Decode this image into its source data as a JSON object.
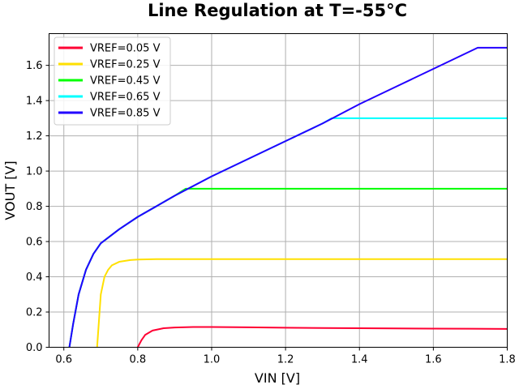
{
  "chart_data": {
    "type": "line",
    "title": "Line Regulation at T=-55°C",
    "xlabel": "VIN [V]",
    "ylabel": "VOUT [V]",
    "xlim": [
      0.56,
      1.8
    ],
    "ylim": [
      0.0,
      1.78
    ],
    "xticks": [
      "0.6",
      "0.8",
      "1.0",
      "1.2",
      "1.4",
      "1.6",
      "1.8"
    ],
    "yticks": [
      "0.0",
      "0.2",
      "0.4",
      "0.6",
      "0.8",
      "1.0",
      "1.2",
      "1.4",
      "1.6"
    ],
    "grid": true,
    "legend_position": "top-left",
    "series": [
      {
        "name": "VREF=0.05 V",
        "color": "#ff0033",
        "x": [
          0.8,
          0.81,
          0.82,
          0.84,
          0.87,
          0.9,
          0.95,
          1.0,
          1.1,
          1.2,
          1.3,
          1.4,
          1.5,
          1.6,
          1.7,
          1.8
        ],
        "y": [
          0.0,
          0.04,
          0.07,
          0.095,
          0.108,
          0.112,
          0.115,
          0.115,
          0.113,
          0.111,
          0.109,
          0.108,
          0.107,
          0.106,
          0.105,
          0.104
        ]
      },
      {
        "name": "VREF=0.25 V",
        "color": "#ffe000",
        "x": [
          0.69,
          0.695,
          0.7,
          0.71,
          0.72,
          0.73,
          0.75,
          0.78,
          0.8,
          0.85,
          0.9,
          1.0,
          1.2,
          1.4,
          1.6,
          1.8
        ],
        "y": [
          0.0,
          0.15,
          0.3,
          0.4,
          0.44,
          0.465,
          0.485,
          0.495,
          0.498,
          0.5,
          0.5,
          0.5,
          0.5,
          0.5,
          0.5,
          0.5
        ]
      },
      {
        "name": "VREF=0.45 V",
        "color": "#00ff00",
        "x": [
          0.615,
          0.625,
          0.64,
          0.66,
          0.68,
          0.7,
          0.75,
          0.8,
          0.85,
          0.9,
          0.93,
          1.0,
          1.2,
          1.4,
          1.6,
          1.8
        ],
        "y": [
          0.0,
          0.13,
          0.3,
          0.44,
          0.53,
          0.59,
          0.67,
          0.74,
          0.8,
          0.86,
          0.9,
          0.9,
          0.9,
          0.9,
          0.9,
          0.9
        ]
      },
      {
        "name": "VREF=0.65 V",
        "color": "#00ffff",
        "x": [
          0.615,
          0.625,
          0.64,
          0.66,
          0.68,
          0.7,
          0.75,
          0.8,
          0.85,
          0.9,
          1.0,
          1.1,
          1.2,
          1.3,
          1.325,
          1.4,
          1.6,
          1.8
        ],
        "y": [
          0.0,
          0.13,
          0.3,
          0.44,
          0.53,
          0.59,
          0.67,
          0.74,
          0.8,
          0.86,
          0.97,
          1.07,
          1.17,
          1.27,
          1.3,
          1.3,
          1.3,
          1.3
        ]
      },
      {
        "name": "VREF=0.85 V",
        "color": "#2200ff",
        "x": [
          0.615,
          0.625,
          0.64,
          0.66,
          0.68,
          0.7,
          0.75,
          0.8,
          0.85,
          0.9,
          1.0,
          1.1,
          1.2,
          1.3,
          1.4,
          1.5,
          1.6,
          1.72,
          1.8
        ],
        "y": [
          0.0,
          0.13,
          0.3,
          0.44,
          0.53,
          0.59,
          0.67,
          0.74,
          0.8,
          0.86,
          0.97,
          1.07,
          1.17,
          1.27,
          1.38,
          1.48,
          1.58,
          1.7,
          1.7
        ]
      }
    ]
  }
}
